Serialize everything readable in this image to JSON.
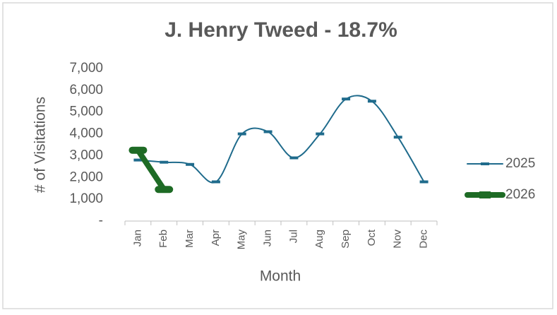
{
  "chart_data": {
    "type": "line",
    "title": "J. Henry Tweed - 18.7%",
    "x_label": "Month",
    "y_label": "# of Visitations",
    "categories": [
      "Jan",
      "Feb",
      "Mar",
      "Apr",
      "May",
      "Jun",
      "Jul",
      "Aug",
      "Sep",
      "Oct",
      "Nov",
      "Dec"
    ],
    "series": [
      {
        "name": "2025",
        "color": "#1f6b8c",
        "values": [
          2800,
          2700,
          2600,
          1800,
          4000,
          4100,
          2900,
          4000,
          5600,
          5500,
          3850,
          1800
        ]
      },
      {
        "name": "2026",
        "color": "#1e6b25",
        "values": [
          3250,
          1450,
          null,
          null,
          null,
          null,
          null,
          null,
          null,
          null,
          null,
          null
        ]
      }
    ],
    "ylim": [
      0,
      7000
    ],
    "yticks": [
      {
        "value": 0,
        "label": "-"
      },
      {
        "value": 1000,
        "label": "1,000"
      },
      {
        "value": 2000,
        "label": "2,000"
      },
      {
        "value": 3000,
        "label": "3,000"
      },
      {
        "value": 4000,
        "label": "4,000"
      },
      {
        "value": 5000,
        "label": "5,000"
      },
      {
        "value": 6000,
        "label": "6,000"
      },
      {
        "value": 7000,
        "label": "7,000"
      }
    ],
    "grid": false,
    "legend": "right"
  }
}
